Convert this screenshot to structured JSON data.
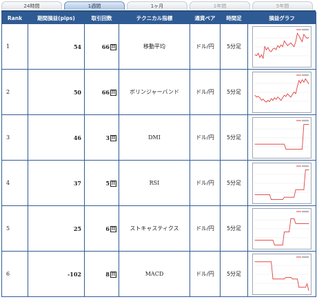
{
  "tabs": [
    {
      "label": "24時間",
      "state": "normal"
    },
    {
      "label": "1週間",
      "state": "active"
    },
    {
      "label": "1ヶ月",
      "state": "normal"
    },
    {
      "label": "1年間",
      "state": "dim"
    },
    {
      "label": "5年間",
      "state": "dim"
    }
  ],
  "columns": [
    "Rank",
    "期間損益(pips)",
    "取引回数",
    "テクニカル指標",
    "通貨ペア",
    "時間足",
    "損益グラフ"
  ],
  "trade_box_glyph": "回",
  "colors": {
    "header_bg": "#2f5b94",
    "graph_line": "#e04040",
    "grid_border": "#2f5b94"
  },
  "rows": [
    {
      "rank": "1",
      "pips": "54",
      "trades": "66",
      "indicator": "移動平均",
      "pair": "ドル/円",
      "timeframe": "5分足",
      "graph": [
        0.3,
        0.28,
        0.35,
        0.22,
        0.3,
        0.2,
        0.55,
        0.45,
        0.52,
        0.42,
        0.4,
        0.48,
        0.5,
        0.46,
        0.58,
        0.52,
        0.6,
        0.55,
        0.72,
        0.65,
        0.58,
        0.62,
        0.66,
        0.6,
        0.55,
        0.7,
        0.95,
        0.88,
        0.78,
        0.7,
        0.92,
        0.85,
        0.8,
        0.82
      ]
    },
    {
      "rank": "2",
      "pips": "50",
      "trades": "66",
      "indicator": "ボリンジャーバンド",
      "pair": "ドル/円",
      "timeframe": "5分足",
      "graph": [
        0.45,
        0.4,
        0.42,
        0.38,
        0.3,
        0.34,
        0.28,
        0.25,
        0.3,
        0.26,
        0.35,
        0.3,
        0.38,
        0.33,
        0.4,
        0.35,
        0.3,
        0.38,
        0.45,
        0.42,
        0.5,
        0.44,
        0.4,
        0.48,
        0.55,
        0.5,
        0.72,
        0.9,
        0.82,
        0.92,
        0.85,
        0.95,
        0.88,
        0.8
      ]
    },
    {
      "rank": "3",
      "pips": "46",
      "trades": "3",
      "indicator": "DMI",
      "pair": "ドル/円",
      "timeframe": "5分足",
      "graph": [
        0.35,
        0.35,
        0.35,
        0.35,
        0.35,
        0.35,
        0.35,
        0.35,
        0.35,
        0.35,
        0.35,
        0.35,
        0.35,
        0.35,
        0.35,
        0.35,
        0.35,
        0.35,
        0.35,
        0.2,
        0.2,
        0.2,
        0.2,
        0.2,
        0.2,
        0.2,
        0.2,
        0.2,
        0.2,
        0.2,
        0.95,
        0.95,
        0.95,
        0.95
      ]
    },
    {
      "rank": "4",
      "pips": "37",
      "trades": "5",
      "indicator": "RSI",
      "pair": "ドル/円",
      "timeframe": "5分足",
      "graph": [
        0.2,
        0.2,
        0.2,
        0.2,
        0.2,
        0.2,
        0.2,
        0.2,
        0.2,
        0.2,
        0.05,
        0.05,
        0.05,
        0.05,
        0.05,
        0.05,
        0.05,
        0.05,
        0.12,
        0.12,
        0.12,
        0.12,
        0.12,
        0.12,
        0.12,
        0.35,
        0.35,
        0.35,
        0.35,
        0.35,
        0.35,
        0.95,
        0.95,
        0.95
      ]
    },
    {
      "rank": "5",
      "pips": "25",
      "trades": "6",
      "indicator": "ストキャスティクス",
      "pair": "ドル/円",
      "timeframe": "5分足",
      "graph": [
        0.2,
        0.2,
        0.2,
        0.2,
        0.2,
        0.2,
        0.2,
        0.2,
        0.2,
        0.2,
        0.2,
        0.2,
        0.05,
        0.05,
        0.05,
        0.05,
        0.05,
        0.05,
        0.45,
        0.45,
        0.45,
        0.45,
        0.85,
        0.85,
        0.85,
        0.7,
        0.7,
        0.7,
        0.7,
        0.7,
        0.7,
        0.7,
        0.7,
        0.7
      ]
    },
    {
      "rank": "6",
      "pips": "-102",
      "trades": "8",
      "indicator": "MACD",
      "pair": "ドル/円",
      "timeframe": "5分足",
      "graph": [
        0.92,
        0.92,
        0.92,
        0.92,
        0.92,
        0.92,
        0.92,
        0.92,
        0.92,
        0.92,
        0.92,
        0.4,
        0.4,
        0.4,
        0.4,
        0.4,
        0.4,
        0.4,
        0.4,
        0.45,
        0.45,
        0.45,
        0.45,
        0.4,
        0.4,
        0.4,
        0.4,
        0.15,
        0.15,
        0.15,
        0.15,
        0.15,
        0.25,
        0.05
      ]
    }
  ]
}
